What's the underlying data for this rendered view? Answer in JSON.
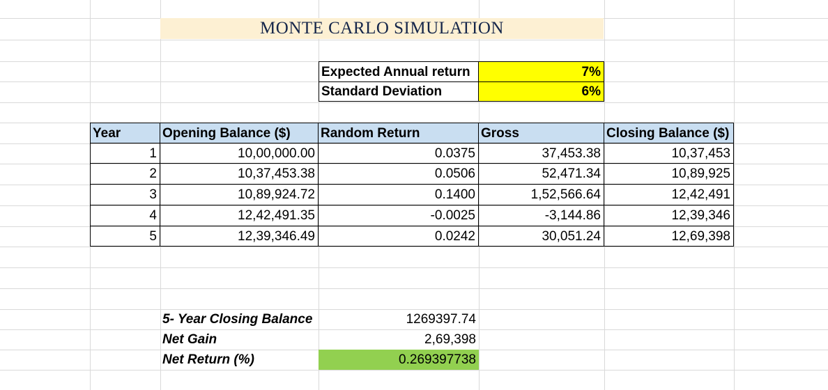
{
  "title": "MONTE CARLO SIMULATION",
  "params": {
    "expected_label": "Expected Annual return",
    "expected_value": "7%",
    "stddev_label": "Standard Deviation",
    "stddev_value": "6%"
  },
  "table": {
    "headers": [
      "Year",
      "Opening Balance ($)",
      "Random Return",
      "Gross",
      "Closing Balance ($)"
    ],
    "rows": [
      [
        "1",
        "10,00,000.00",
        "0.0375",
        "37,453.38",
        "10,37,453"
      ],
      [
        "2",
        "10,37,453.38",
        "0.0506",
        "52,471.34",
        "10,89,925"
      ],
      [
        "3",
        "10,89,924.72",
        "0.1400",
        "1,52,566.64",
        "12,42,491"
      ],
      [
        "4",
        "12,42,491.35",
        "-0.0025",
        "-3,144.86",
        "12,39,346"
      ],
      [
        "5",
        "12,39,346.49",
        "0.0242",
        "30,051.24",
        "12,69,398"
      ]
    ]
  },
  "summary": {
    "closing_label": "5- Year Closing Balance",
    "closing_value": "1269397.74",
    "gain_label": "Net Gain",
    "gain_value": "2,69,398",
    "return_label": "Net Return (%)",
    "return_value": "0.269397738"
  },
  "colors": {
    "title_bg": "#fdf0d3",
    "title_text": "#15264a",
    "param_bg": "#ffff00",
    "header_bg": "#c9def1",
    "net_return_bg": "#92d050",
    "gridline": "#d9d9d9"
  }
}
